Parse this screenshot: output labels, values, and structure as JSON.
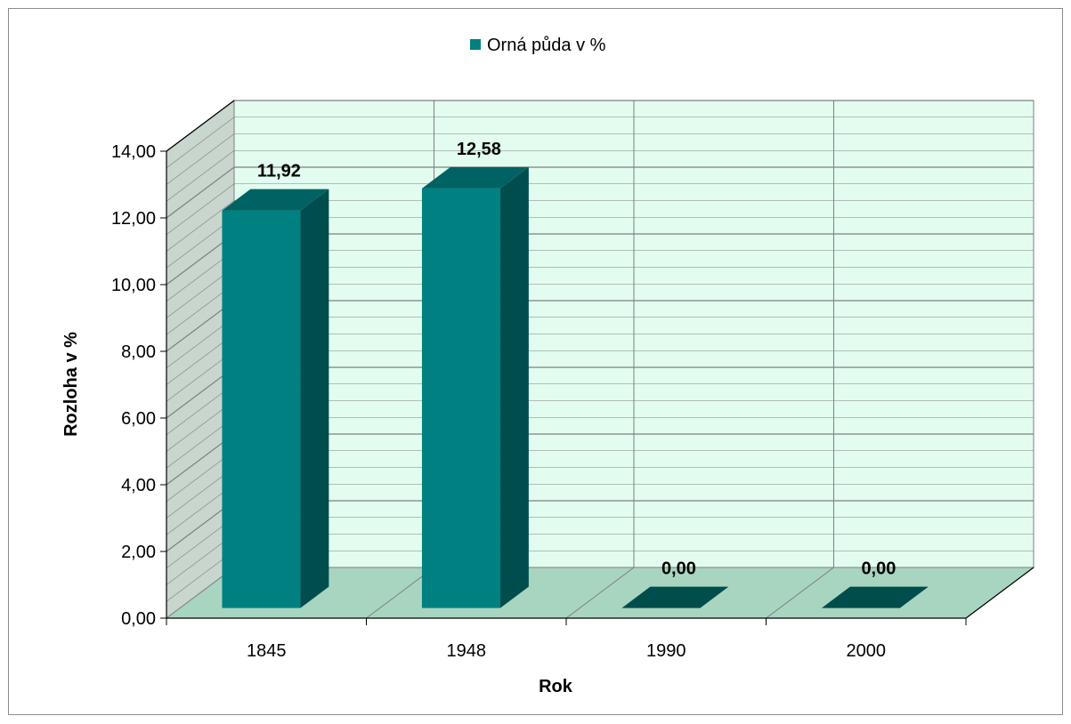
{
  "chart_data": {
    "type": "bar",
    "categories": [
      "1845",
      "1948",
      "1990",
      "2000"
    ],
    "series": [
      {
        "name": "Orná půda v %",
        "values": [
          11.92,
          12.58,
          0.0,
          0.0
        ]
      }
    ],
    "data_labels": [
      "11,92",
      "12,58",
      "0,00",
      "0,00"
    ],
    "y_ticks": [
      "0,00",
      "2,00",
      "4,00",
      "6,00",
      "8,00",
      "10,00",
      "12,00",
      "14,00"
    ],
    "ylim": [
      0,
      14
    ],
    "xlabel": "Rok",
    "ylabel": "Rozloha v %",
    "legend_position": "top",
    "grid": true,
    "style": "3d-column",
    "colors": {
      "bar_front": "#008080",
      "bar_side": "#004d4d",
      "bar_top": "#006262",
      "back_wall": "#e2fdf0",
      "side_wall": "#c8d6ce",
      "floor": "#a8d5c0",
      "grid": "#7f7f7f"
    }
  }
}
